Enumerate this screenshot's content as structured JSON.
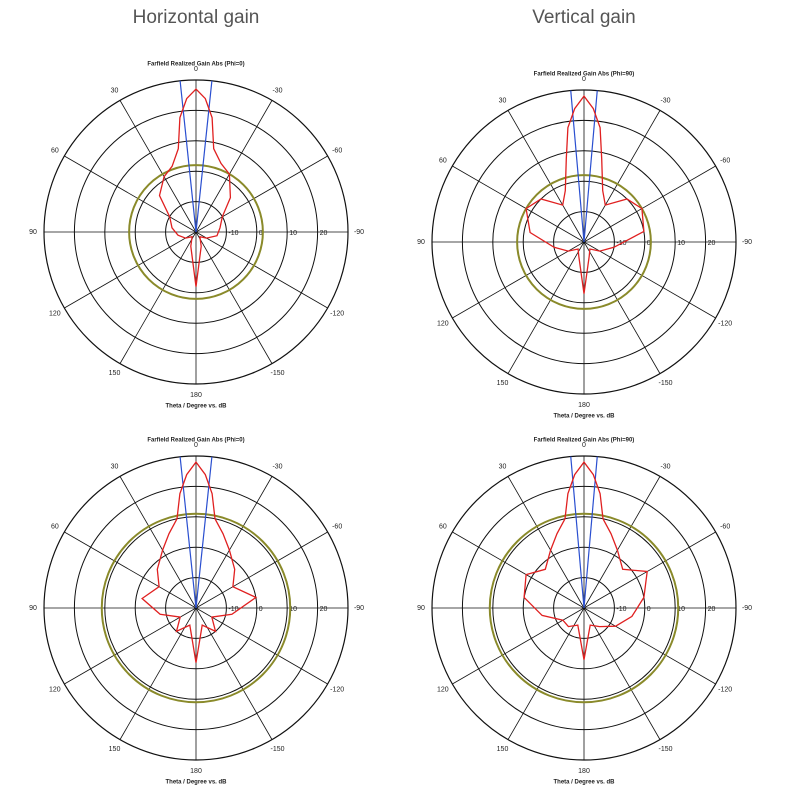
{
  "headings": [
    "Horizontal gain",
    "Vertical gain"
  ],
  "chart_data": [
    {
      "type": "polar",
      "title": "Farfield Realized Gain Abs (Phi=0)",
      "xlabel": "Theta / Degree vs. dB",
      "theta_ticks": [
        0,
        30,
        60,
        90,
        120,
        150,
        180,
        -150,
        -120,
        -90,
        -60,
        -30
      ],
      "rlim": [
        -20,
        30
      ],
      "rticks": [
        -10,
        0,
        10,
        20
      ],
      "series": [
        {
          "color": "#e02020",
          "theta": [
            -180,
            -160,
            -140,
            -120,
            -100,
            -80,
            -60,
            -45,
            -30,
            -20,
            -12,
            -8,
            -4,
            0,
            4,
            8,
            12,
            20,
            30,
            45,
            60,
            80,
            100,
            120,
            140,
            160
          ],
          "r": [
            -2,
            -15,
            -18,
            -16,
            -13,
            -12,
            -10,
            -4,
            2,
            4,
            8,
            18,
            24,
            27,
            24,
            18,
            8,
            3,
            1,
            -3,
            -10,
            -12,
            -14,
            -16,
            -18,
            -15
          ]
        }
      ],
      "markers": {
        "color": "#2a4fd0",
        "angles": [
          -6,
          6
        ]
      },
      "reference": {
        "color": "#8a8a2a",
        "value": 2
      }
    },
    {
      "type": "polar",
      "title": "Farfield Realized Gain Abs (Phi=90)",
      "xlabel": "Theta / Degree vs. dB",
      "theta_ticks": [
        0,
        30,
        60,
        90,
        120,
        150,
        180,
        -150,
        -120,
        -90,
        -60,
        -30
      ],
      "rlim": [
        -20,
        30
      ],
      "rticks": [
        -10,
        0,
        10,
        20
      ],
      "series": [
        {
          "color": "#e02020",
          "theta": [
            -180,
            -160,
            -140,
            -120,
            -100,
            -80,
            -60,
            -45,
            -30,
            -20,
            -12,
            -8,
            -4,
            0,
            4,
            8,
            12,
            20,
            30,
            45,
            60,
            80,
            100,
            120,
            140,
            160
          ],
          "r": [
            -3,
            -15,
            -17,
            -14,
            -10,
            0,
            2,
            0,
            -6,
            -2,
            8,
            18,
            24,
            28,
            24,
            18,
            8,
            -2,
            -6,
            0,
            2,
            -2,
            -10,
            -14,
            -17,
            -15
          ]
        }
      ],
      "markers": {
        "color": "#2a4fd0",
        "angles": [
          -5,
          5
        ]
      },
      "reference": {
        "color": "#8a8a2a",
        "value": 2
      }
    },
    {
      "type": "polar",
      "title": "Farfield Realized Gain Abs (Phi=0)",
      "xlabel": "Theta / Degree vs. dB",
      "theta_ticks": [
        0,
        30,
        60,
        90,
        120,
        150,
        180,
        -150,
        -120,
        -90,
        -60,
        -30
      ],
      "rlim": [
        -20,
        30
      ],
      "rticks": [
        -10,
        0,
        10,
        20
      ],
      "series": [
        {
          "color": "#e02020",
          "theta": [
            -180,
            -160,
            -140,
            -120,
            -100,
            -80,
            -60,
            -45,
            -30,
            -20,
            -12,
            -8,
            -4,
            0,
            4,
            8,
            12,
            20,
            30,
            45,
            60,
            80,
            100,
            120,
            140,
            160
          ],
          "r": [
            -2,
            -14,
            -10,
            -14,
            -8,
            0,
            -6,
            -2,
            2,
            6,
            10,
            18,
            24,
            28,
            24,
            18,
            10,
            6,
            2,
            -2,
            -6,
            -2,
            -8,
            -14,
            -10,
            -14
          ]
        }
      ],
      "markers": {
        "color": "#2a4fd0",
        "angles": [
          -6,
          6
        ]
      },
      "reference": {
        "color": "#8a8a2a",
        "value": 11
      }
    },
    {
      "type": "polar",
      "title": "Farfield Realized Gain Abs (Phi=90)",
      "xlabel": "Theta / Degree vs. dB",
      "theta_ticks": [
        0,
        30,
        60,
        90,
        120,
        150,
        180,
        -150,
        -120,
        -90,
        -60,
        -30
      ],
      "rlim": [
        -20,
        30
      ],
      "rticks": [
        -10,
        0,
        10,
        20
      ],
      "series": [
        {
          "color": "#e02020",
          "theta": [
            -180,
            -160,
            -140,
            -120,
            -100,
            -80,
            -60,
            -45,
            -30,
            -20,
            -12,
            -8,
            -4,
            0,
            4,
            8,
            12,
            20,
            30,
            45,
            60,
            80,
            100,
            120,
            140,
            160
          ],
          "r": [
            -3,
            -14,
            -12,
            -8,
            -4,
            0,
            4,
            -2,
            2,
            6,
            10,
            18,
            24,
            28,
            24,
            18,
            10,
            6,
            2,
            -2,
            2,
            0,
            -6,
            -12,
            -12,
            -14
          ]
        }
      ],
      "markers": {
        "color": "#2a4fd0",
        "angles": [
          -5,
          5
        ]
      },
      "reference": {
        "color": "#8a8a2a",
        "value": 11
      }
    }
  ]
}
